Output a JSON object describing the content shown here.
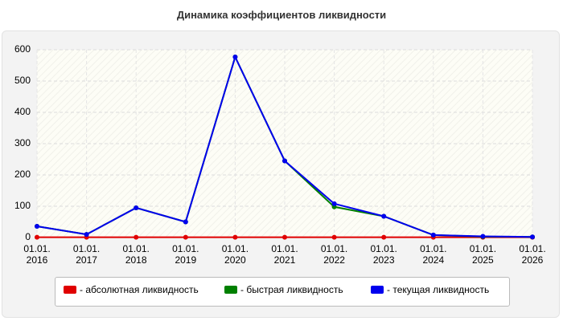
{
  "chart_data": {
    "type": "line",
    "title": "Динамика коэффициентов ликвидности",
    "categories": [
      "01.01.\n2016",
      "01.01.\n2017",
      "01.01.\n2018",
      "01.01.\n2019",
      "01.01.\n2020",
      "01.01.\n2021",
      "01.01.\n2022",
      "01.01.\n2023",
      "01.01.\n2024",
      "01.01.\n2025",
      "01.01.\n2026"
    ],
    "series": [
      {
        "name": "- абсолютная ликвидность",
        "color": "#e00000",
        "values": [
          1,
          1,
          1,
          1,
          1,
          1,
          1,
          1,
          1,
          1,
          1
        ]
      },
      {
        "name": "- быстрая ликвидность",
        "color": "#008000",
        "values": [
          36,
          10,
          95,
          50,
          577,
          245,
          98,
          68,
          8,
          3,
          2
        ]
      },
      {
        "name": "- текущая ликвидность",
        "color": "#0000ee",
        "values": [
          36,
          10,
          95,
          50,
          577,
          245,
          108,
          68,
          8,
          4,
          2
        ]
      }
    ],
    "ylim": [
      0,
      600
    ],
    "yticks": [
      0,
      100,
      200,
      300,
      400,
      500,
      600
    ],
    "grid": true
  }
}
